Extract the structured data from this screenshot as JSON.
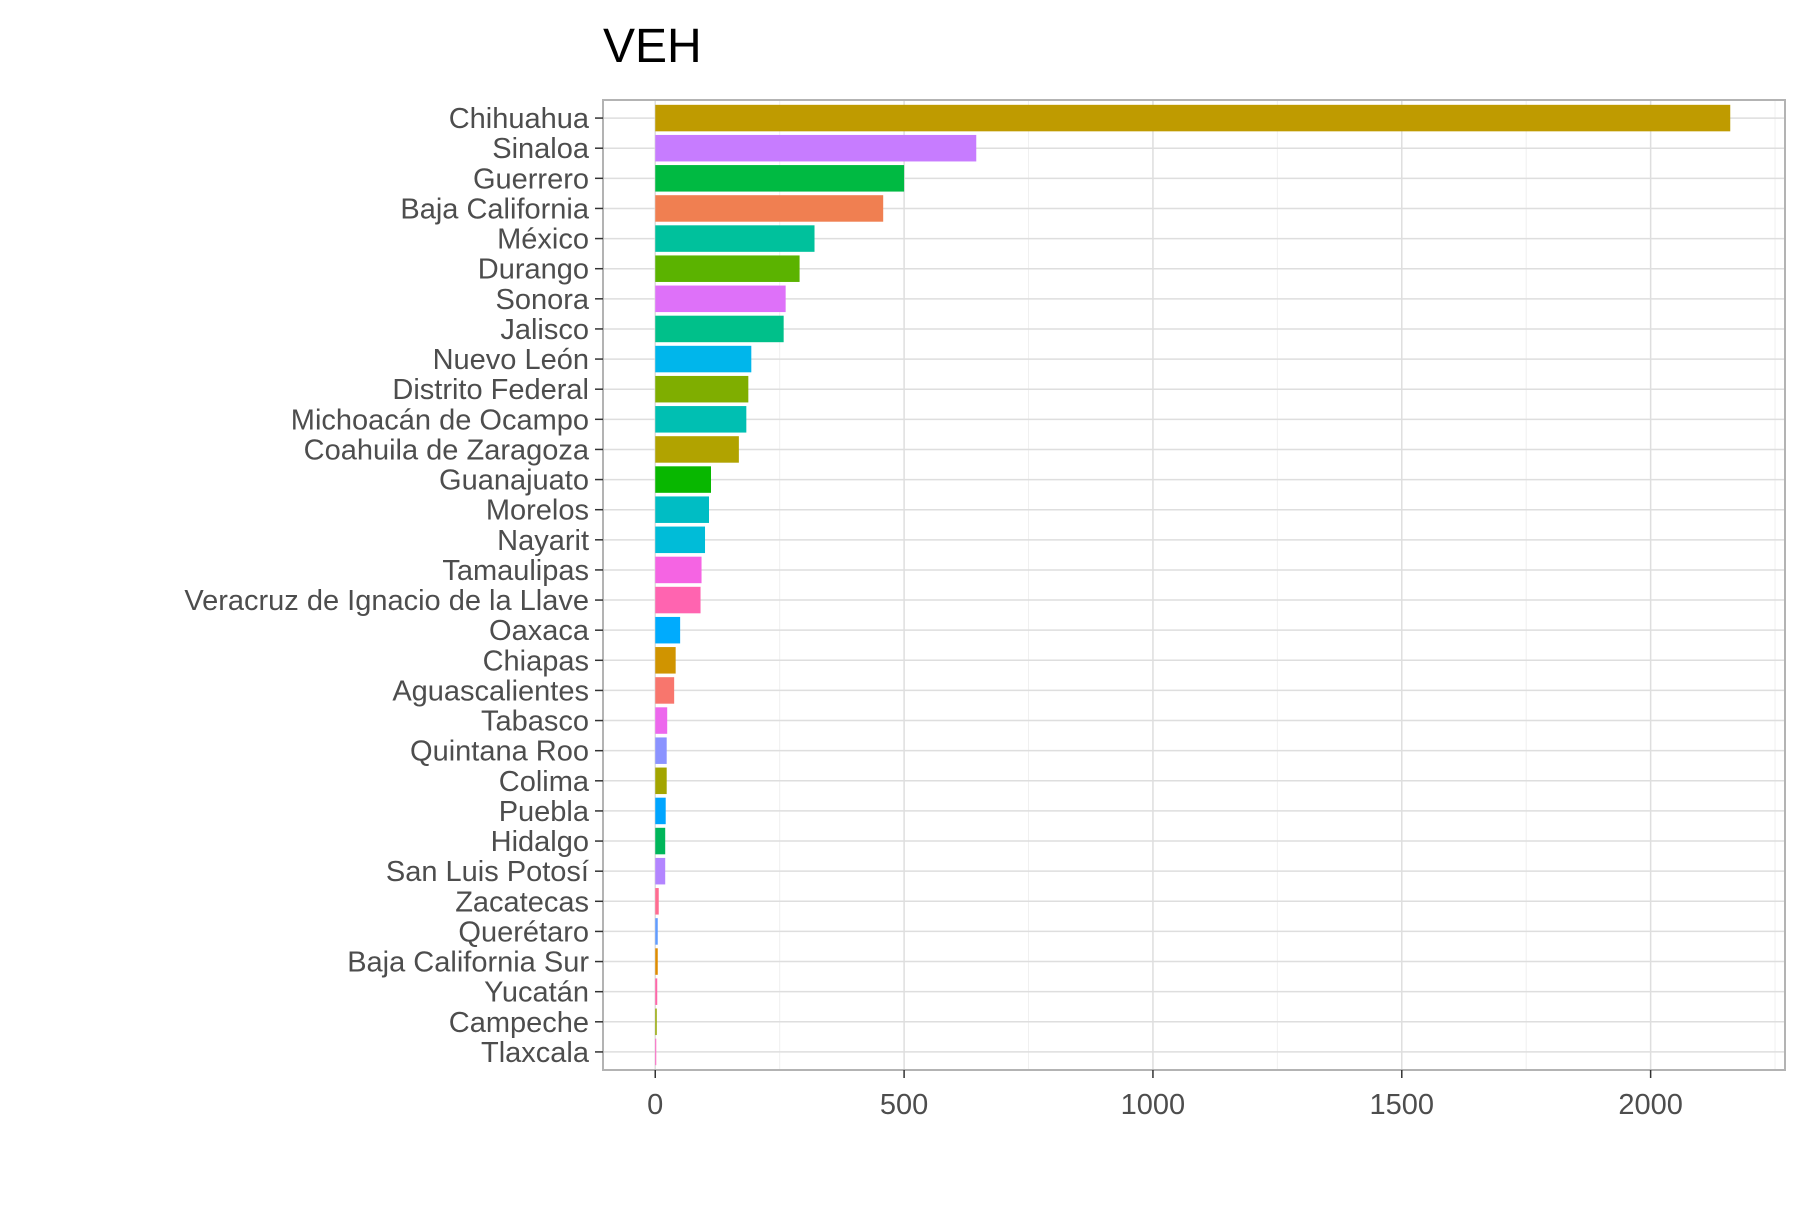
{
  "chart_data": {
    "type": "bar",
    "orientation": "horizontal",
    "title": "VEH",
    "xlabel": "",
    "ylabel": "",
    "xlim": [
      -105,
      2270
    ],
    "x_ticks": [
      0,
      500,
      1000,
      1500,
      2000
    ],
    "grid": true,
    "legend": "none",
    "categories": [
      "Chihuahua",
      "Sinaloa",
      "Guerrero",
      "Baja California",
      "México",
      "Durango",
      "Sonora",
      "Jalisco",
      "Nuevo León",
      "Distrito Federal",
      "Michoacán de Ocampo",
      "Coahuila de Zaragoza",
      "Guanajuato",
      "Morelos",
      "Nayarit",
      "Tamaulipas",
      "Veracruz de Ignacio de la Llave",
      "Oaxaca",
      "Chiapas",
      "Aguascalientes",
      "Tabasco",
      "Quintana Roo",
      "Colima",
      "Puebla",
      "Hidalgo",
      "San Luis Potosí",
      "Zacatecas",
      "Querétaro",
      "Baja California Sur",
      "Yucatán",
      "Campeche",
      "Tlaxcala"
    ],
    "values": [
      2160,
      645,
      500,
      458,
      320,
      290,
      262,
      258,
      193,
      187,
      183,
      168,
      112,
      108,
      100,
      93,
      91,
      50,
      41,
      38,
      24,
      23,
      23,
      21,
      20,
      20,
      7,
      5,
      5,
      4,
      3,
      2
    ],
    "colors": [
      "#BF9B00",
      "#C77CFF",
      "#00BA42",
      "#F07F51",
      "#00C19C",
      "#5BB300",
      "#DE71F9",
      "#00C08A",
      "#00B6EB",
      "#7FAE00",
      "#00BFB2",
      "#B1A300",
      "#08B700",
      "#00BDC4",
      "#00BCD8",
      "#F564E3",
      "#FF64B0",
      "#00ABFD",
      "#D09400",
      "#F8766D",
      "#ED68ED",
      "#8B93FF",
      "#A3A500",
      "#00A5FF",
      "#00B65A",
      "#B385FF",
      "#FF6C91",
      "#619CFF",
      "#DF8C00",
      "#FF66A8",
      "#96A900",
      "#FF61C3"
    ]
  }
}
